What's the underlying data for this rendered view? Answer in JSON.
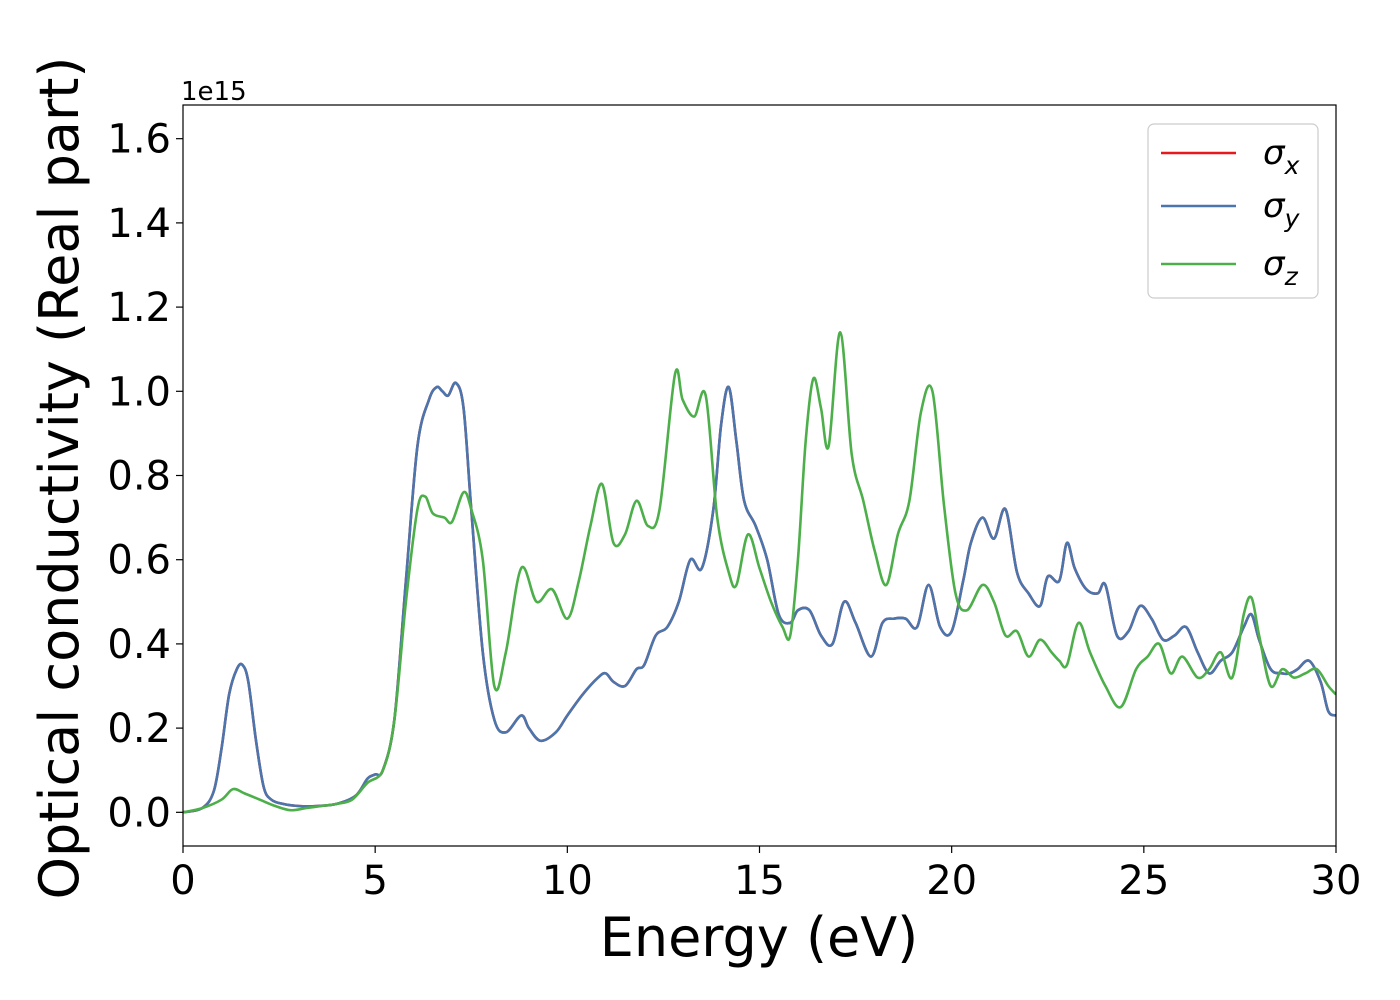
{
  "chart_data": {
    "type": "line",
    "xlabel": "Energy (eV)",
    "ylabel": "Optical conductivity (Real part)",
    "y_offset_label": "1e15",
    "xlim": [
      0,
      30
    ],
    "ylim": [
      -0.08,
      1.68
    ],
    "x_ticks": [
      0,
      5,
      10,
      15,
      20,
      25,
      30
    ],
    "x_tick_labels": [
      "0",
      "5",
      "10",
      "15",
      "20",
      "25",
      "30"
    ],
    "y_ticks": [
      0.0,
      0.2,
      0.4,
      0.6,
      0.8,
      1.0,
      1.2,
      1.4,
      1.6
    ],
    "y_tick_labels": [
      "0.0",
      "0.2",
      "0.4",
      "0.6",
      "0.8",
      "1.0",
      "1.2",
      "1.4",
      "1.6"
    ],
    "grid": false,
    "legend_position": "top-right",
    "series": [
      {
        "name": "σx",
        "legend_base": "σ",
        "legend_sub": "x",
        "color": "#e41a1c",
        "x": [
          0,
          0.5,
          0.8,
          1.0,
          1.2,
          1.4,
          1.55,
          1.7,
          1.9,
          2.1,
          2.3,
          2.6,
          3.0,
          3.5,
          4.0,
          4.5,
          4.8,
          5.0,
          5.2,
          5.5,
          5.8,
          6.1,
          6.4,
          6.6,
          6.75,
          6.9,
          7.1,
          7.3,
          7.5,
          7.8,
          8.1,
          8.4,
          8.8,
          9.0,
          9.3,
          9.7,
          10.0,
          10.4,
          10.8,
          11.0,
          11.2,
          11.5,
          11.8,
          12.0,
          12.3,
          12.6,
          12.9,
          13.2,
          13.5,
          13.8,
          14.0,
          14.2,
          14.4,
          14.6,
          14.9,
          15.2,
          15.5,
          15.8,
          16.0,
          16.3,
          16.6,
          16.9,
          17.2,
          17.5,
          17.9,
          18.2,
          18.5,
          18.8,
          19.1,
          19.4,
          19.7,
          20.0,
          20.3,
          20.5,
          20.8,
          21.1,
          21.4,
          21.7,
          22.0,
          22.3,
          22.5,
          22.8,
          23.0,
          23.2,
          23.5,
          23.8,
          24.0,
          24.3,
          24.6,
          24.9,
          25.2,
          25.5,
          25.8,
          26.1,
          26.4,
          26.7,
          27.0,
          27.3,
          27.6,
          27.8,
          28.0,
          28.3,
          28.6,
          28.8,
          29.0,
          29.3,
          29.6,
          29.8,
          30.0
        ],
        "values": [
          0.0,
          0.01,
          0.05,
          0.15,
          0.28,
          0.34,
          0.35,
          0.31,
          0.17,
          0.06,
          0.03,
          0.02,
          0.015,
          0.015,
          0.02,
          0.04,
          0.08,
          0.09,
          0.1,
          0.22,
          0.55,
          0.87,
          0.98,
          1.01,
          1.0,
          0.99,
          1.02,
          0.96,
          0.72,
          0.38,
          0.22,
          0.19,
          0.23,
          0.2,
          0.17,
          0.19,
          0.23,
          0.28,
          0.32,
          0.33,
          0.31,
          0.3,
          0.34,
          0.35,
          0.42,
          0.44,
          0.5,
          0.6,
          0.58,
          0.72,
          0.92,
          1.01,
          0.88,
          0.74,
          0.68,
          0.6,
          0.47,
          0.45,
          0.48,
          0.48,
          0.42,
          0.4,
          0.5,
          0.45,
          0.37,
          0.45,
          0.46,
          0.46,
          0.44,
          0.54,
          0.44,
          0.43,
          0.55,
          0.64,
          0.7,
          0.65,
          0.72,
          0.57,
          0.52,
          0.49,
          0.56,
          0.55,
          0.64,
          0.58,
          0.53,
          0.52,
          0.54,
          0.42,
          0.43,
          0.49,
          0.46,
          0.41,
          0.42,
          0.44,
          0.38,
          0.33,
          0.36,
          0.38,
          0.44,
          0.47,
          0.41,
          0.34,
          0.33,
          0.33,
          0.34,
          0.36,
          0.31,
          0.24,
          0.23
        ]
      },
      {
        "name": "σy",
        "legend_base": "σ",
        "legend_sub": "y",
        "color": "#4a76ad",
        "x": [
          0,
          0.5,
          0.8,
          1.0,
          1.2,
          1.4,
          1.55,
          1.7,
          1.9,
          2.1,
          2.3,
          2.6,
          3.0,
          3.5,
          4.0,
          4.5,
          4.8,
          5.0,
          5.2,
          5.5,
          5.8,
          6.1,
          6.4,
          6.6,
          6.75,
          6.9,
          7.1,
          7.3,
          7.5,
          7.8,
          8.1,
          8.4,
          8.8,
          9.0,
          9.3,
          9.7,
          10.0,
          10.4,
          10.8,
          11.0,
          11.2,
          11.5,
          11.8,
          12.0,
          12.3,
          12.6,
          12.9,
          13.2,
          13.5,
          13.8,
          14.0,
          14.2,
          14.4,
          14.6,
          14.9,
          15.2,
          15.5,
          15.8,
          16.0,
          16.3,
          16.6,
          16.9,
          17.2,
          17.5,
          17.9,
          18.2,
          18.5,
          18.8,
          19.1,
          19.4,
          19.7,
          20.0,
          20.3,
          20.5,
          20.8,
          21.1,
          21.4,
          21.7,
          22.0,
          22.3,
          22.5,
          22.8,
          23.0,
          23.2,
          23.5,
          23.8,
          24.0,
          24.3,
          24.6,
          24.9,
          25.2,
          25.5,
          25.8,
          26.1,
          26.4,
          26.7,
          27.0,
          27.3,
          27.6,
          27.8,
          28.0,
          28.3,
          28.6,
          28.8,
          29.0,
          29.3,
          29.6,
          29.8,
          30.0
        ],
        "values": [
          0.0,
          0.01,
          0.05,
          0.15,
          0.28,
          0.34,
          0.35,
          0.31,
          0.17,
          0.06,
          0.03,
          0.02,
          0.015,
          0.015,
          0.02,
          0.04,
          0.08,
          0.09,
          0.1,
          0.22,
          0.55,
          0.87,
          0.98,
          1.01,
          1.0,
          0.99,
          1.02,
          0.96,
          0.72,
          0.38,
          0.22,
          0.19,
          0.23,
          0.2,
          0.17,
          0.19,
          0.23,
          0.28,
          0.32,
          0.33,
          0.31,
          0.3,
          0.34,
          0.35,
          0.42,
          0.44,
          0.5,
          0.6,
          0.58,
          0.72,
          0.92,
          1.01,
          0.88,
          0.74,
          0.68,
          0.6,
          0.47,
          0.45,
          0.48,
          0.48,
          0.42,
          0.4,
          0.5,
          0.45,
          0.37,
          0.45,
          0.46,
          0.46,
          0.44,
          0.54,
          0.44,
          0.43,
          0.55,
          0.64,
          0.7,
          0.65,
          0.72,
          0.57,
          0.52,
          0.49,
          0.56,
          0.55,
          0.64,
          0.58,
          0.53,
          0.52,
          0.54,
          0.42,
          0.43,
          0.49,
          0.46,
          0.41,
          0.42,
          0.44,
          0.38,
          0.33,
          0.36,
          0.38,
          0.44,
          0.47,
          0.41,
          0.34,
          0.33,
          0.33,
          0.34,
          0.36,
          0.31,
          0.24,
          0.23
        ]
      },
      {
        "name": "σz",
        "legend_base": "σ",
        "legend_sub": "z",
        "color": "#4daf4a",
        "x": [
          0,
          0.5,
          1.0,
          1.3,
          1.6,
          2.0,
          2.4,
          2.8,
          3.2,
          3.6,
          4.0,
          4.4,
          4.8,
          5.2,
          5.5,
          5.8,
          6.1,
          6.3,
          6.5,
          6.8,
          7.0,
          7.3,
          7.5,
          7.8,
          8.1,
          8.4,
          8.8,
          9.2,
          9.6,
          10.0,
          10.3,
          10.6,
          10.9,
          11.2,
          11.5,
          11.8,
          12.1,
          12.4,
          12.8,
          13.0,
          13.3,
          13.6,
          13.9,
          14.2,
          14.4,
          14.7,
          15.0,
          15.3,
          15.6,
          15.8,
          16.0,
          16.2,
          16.4,
          16.6,
          16.8,
          17.1,
          17.4,
          17.7,
          18.0,
          18.3,
          18.6,
          18.9,
          19.2,
          19.5,
          19.8,
          20.1,
          20.4,
          20.8,
          21.1,
          21.4,
          21.7,
          22.0,
          22.3,
          22.6,
          22.8,
          23.0,
          23.3,
          23.6,
          24.0,
          24.4,
          24.8,
          25.1,
          25.4,
          25.7,
          26.0,
          26.4,
          26.7,
          27.0,
          27.3,
          27.6,
          27.8,
          28.0,
          28.3,
          28.6,
          28.9,
          29.2,
          29.5,
          29.8,
          30.0
        ],
        "values": [
          0.0,
          0.01,
          0.03,
          0.055,
          0.045,
          0.03,
          0.015,
          0.005,
          0.01,
          0.015,
          0.02,
          0.03,
          0.07,
          0.1,
          0.22,
          0.5,
          0.72,
          0.75,
          0.71,
          0.7,
          0.69,
          0.76,
          0.72,
          0.6,
          0.3,
          0.38,
          0.58,
          0.5,
          0.53,
          0.46,
          0.55,
          0.68,
          0.78,
          0.64,
          0.66,
          0.74,
          0.68,
          0.72,
          1.04,
          0.98,
          0.94,
          0.99,
          0.7,
          0.57,
          0.54,
          0.66,
          0.58,
          0.5,
          0.44,
          0.42,
          0.6,
          0.88,
          1.03,
          0.96,
          0.87,
          1.14,
          0.85,
          0.74,
          0.62,
          0.54,
          0.66,
          0.74,
          0.95,
          1.0,
          0.73,
          0.52,
          0.48,
          0.54,
          0.5,
          0.42,
          0.43,
          0.37,
          0.41,
          0.38,
          0.36,
          0.35,
          0.45,
          0.38,
          0.3,
          0.25,
          0.34,
          0.37,
          0.4,
          0.33,
          0.37,
          0.32,
          0.34,
          0.38,
          0.32,
          0.47,
          0.51,
          0.42,
          0.3,
          0.34,
          0.32,
          0.33,
          0.34,
          0.3,
          0.28
        ]
      }
    ]
  }
}
